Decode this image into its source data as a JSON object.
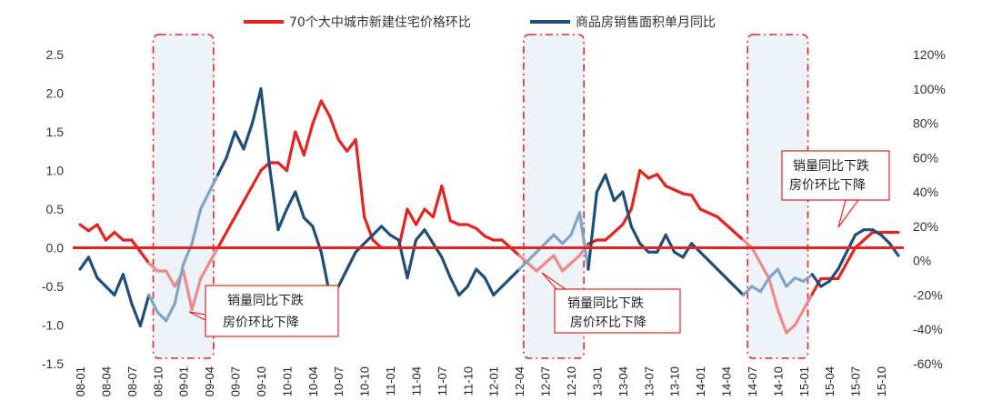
{
  "chart_data": {
    "type": "line",
    "title": "",
    "legend": {
      "placement": "top-center",
      "entries": [
        {
          "name": "70个大中城市新建住宅价格环比",
          "color": "#e52421"
        },
        {
          "name": "商品房销售面积单月同比",
          "color": "#1f4e79"
        }
      ]
    },
    "left_axis": {
      "ylim": [
        -1.5,
        2.5
      ],
      "ticks": [
        "2.5",
        "2.0",
        "1.5",
        "1.0",
        "0.5",
        "0.0",
        "-0.5",
        "-1.0",
        "-1.5"
      ]
    },
    "right_axis": {
      "ylim": [
        -60,
        120
      ],
      "ticks": [
        "120%",
        "100%",
        "80%",
        "60%",
        "40%",
        "20%",
        "0%",
        "-20%",
        "-40%",
        "-60%"
      ]
    },
    "x_range": [
      0,
      95
    ],
    "x_tick_labels": [
      "08-01",
      "08-04",
      "08-07",
      "08-10",
      "09-01",
      "09-04",
      "09-07",
      "09-10",
      "10-01",
      "10-04",
      "10-07",
      "10-10",
      "11-01",
      "11-04",
      "11-07",
      "11-10",
      "12-01",
      "12-04",
      "12-07",
      "12-10",
      "13-01",
      "13-04",
      "13-07",
      "13-10",
      "14-01",
      "14-04",
      "14-07",
      "14-10",
      "15-01",
      "15-04",
      "15-07",
      "15-10"
    ],
    "series": [
      {
        "name": "70个大中城市新建住宅价格环比",
        "axis": "left",
        "color": "#e52421",
        "light_color": "#f08a8a",
        "points": [
          [
            0,
            0.3
          ],
          [
            1,
            0.22
          ],
          [
            2,
            0.3
          ],
          [
            3,
            0.1
          ],
          [
            4,
            0.2
          ],
          [
            5,
            0.1
          ],
          [
            6,
            0.1
          ],
          [
            7,
            -0.05
          ],
          [
            8,
            -0.2
          ],
          [
            9,
            -0.3
          ],
          [
            10,
            -0.3
          ],
          [
            11,
            -0.5
          ],
          [
            12,
            -0.3
          ],
          [
            13,
            -0.8
          ],
          [
            14,
            -0.4
          ],
          [
            15,
            -0.2
          ],
          [
            16,
            0.0
          ],
          [
            17,
            0.2
          ],
          [
            18,
            0.4
          ],
          [
            19,
            0.6
          ],
          [
            20,
            0.8
          ],
          [
            21,
            1.0
          ],
          [
            22,
            1.1
          ],
          [
            23,
            1.1
          ],
          [
            24,
            1.0
          ],
          [
            25,
            1.5
          ],
          [
            26,
            1.2
          ],
          [
            27,
            1.6
          ],
          [
            28,
            1.9
          ],
          [
            29,
            1.7
          ],
          [
            30,
            1.4
          ],
          [
            31,
            1.25
          ],
          [
            32,
            1.4
          ],
          [
            33,
            0.4
          ],
          [
            34,
            0.1
          ],
          [
            35,
            0.0
          ],
          [
            36,
            0.0
          ],
          [
            37,
            0.0
          ],
          [
            38,
            0.5
          ],
          [
            39,
            0.3
          ],
          [
            40,
            0.5
          ],
          [
            41,
            0.4
          ],
          [
            42,
            0.8
          ],
          [
            43,
            0.35
          ],
          [
            44,
            0.3
          ],
          [
            45,
            0.3
          ],
          [
            46,
            0.25
          ],
          [
            47,
            0.15
          ],
          [
            48,
            0.1
          ],
          [
            49,
            0.1
          ],
          [
            50,
            0.0
          ],
          [
            51,
            -0.1
          ],
          [
            52,
            -0.2
          ],
          [
            53,
            -0.3
          ],
          [
            54,
            -0.2
          ],
          [
            55,
            -0.1
          ],
          [
            56,
            -0.3
          ],
          [
            57,
            -0.2
          ],
          [
            58,
            -0.1
          ],
          [
            59,
            0.05
          ],
          [
            60,
            0.1
          ],
          [
            61,
            0.1
          ],
          [
            62,
            0.2
          ],
          [
            63,
            0.3
          ],
          [
            64,
            0.5
          ],
          [
            65,
            1.0
          ],
          [
            66,
            0.9
          ],
          [
            67,
            0.95
          ],
          [
            68,
            0.8
          ],
          [
            69,
            0.75
          ],
          [
            70,
            0.7
          ],
          [
            71,
            0.68
          ],
          [
            72,
            0.5
          ],
          [
            73,
            0.45
          ],
          [
            74,
            0.4
          ],
          [
            75,
            0.3
          ],
          [
            76,
            0.2
          ],
          [
            77,
            0.1
          ],
          [
            78,
            0.0
          ],
          [
            79,
            -0.2
          ],
          [
            80,
            -0.4
          ],
          [
            81,
            -0.8
          ],
          [
            82,
            -1.1
          ],
          [
            83,
            -1.0
          ],
          [
            84,
            -0.8
          ],
          [
            85,
            -0.6
          ],
          [
            86,
            -0.4
          ],
          [
            87,
            -0.4
          ],
          [
            88,
            -0.4
          ],
          [
            89,
            -0.2
          ],
          [
            90,
            0.0
          ],
          [
            91,
            0.1
          ],
          [
            92,
            0.2
          ],
          [
            93,
            0.2
          ],
          [
            94,
            0.2
          ],
          [
            95,
            0.2
          ]
        ]
      },
      {
        "name": "商品房销售面积单月同比",
        "axis": "right",
        "color": "#1f4e79",
        "light_color": "#7fa6c9",
        "points": [
          [
            0,
            -5
          ],
          [
            1,
            2
          ],
          [
            2,
            -10
          ],
          [
            3,
            -15
          ],
          [
            4,
            -20
          ],
          [
            5,
            -8
          ],
          [
            6,
            -25
          ],
          [
            7,
            -38
          ],
          [
            8,
            -20
          ],
          [
            9,
            -30
          ],
          [
            10,
            -35
          ],
          [
            11,
            -25
          ],
          [
            12,
            -2
          ],
          [
            13,
            10
          ],
          [
            14,
            30
          ],
          [
            15,
            40
          ],
          [
            16,
            50
          ],
          [
            17,
            60
          ],
          [
            18,
            75
          ],
          [
            19,
            65
          ],
          [
            20,
            80
          ],
          [
            21,
            100
          ],
          [
            22,
            55
          ],
          [
            23,
            18
          ],
          [
            24,
            30
          ],
          [
            25,
            40
          ],
          [
            26,
            25
          ],
          [
            27,
            20
          ],
          [
            28,
            5
          ],
          [
            29,
            -20
          ],
          [
            30,
            -15
          ],
          [
            31,
            -5
          ],
          [
            32,
            5
          ],
          [
            33,
            10
          ],
          [
            34,
            15
          ],
          [
            35,
            20
          ],
          [
            36,
            15
          ],
          [
            37,
            12
          ],
          [
            38,
            -10
          ],
          [
            39,
            12
          ],
          [
            40,
            18
          ],
          [
            41,
            10
          ],
          [
            42,
            2
          ],
          [
            43,
            -10
          ],
          [
            44,
            -20
          ],
          [
            45,
            -15
          ],
          [
            46,
            -5
          ],
          [
            47,
            -10
          ],
          [
            48,
            -20
          ],
          [
            49,
            -15
          ],
          [
            50,
            -10
          ],
          [
            51,
            -5
          ],
          [
            52,
            0
          ],
          [
            53,
            5
          ],
          [
            54,
            10
          ],
          [
            55,
            15
          ],
          [
            56,
            10
          ],
          [
            57,
            15
          ],
          [
            58,
            28
          ],
          [
            59,
            -5
          ],
          [
            60,
            40
          ],
          [
            61,
            50
          ],
          [
            62,
            35
          ],
          [
            63,
            40
          ],
          [
            64,
            20
          ],
          [
            65,
            10
          ],
          [
            66,
            5
          ],
          [
            67,
            5
          ],
          [
            68,
            15
          ],
          [
            69,
            5
          ],
          [
            70,
            2
          ],
          [
            71,
            10
          ],
          [
            72,
            5
          ],
          [
            73,
            0
          ],
          [
            74,
            -5
          ],
          [
            75,
            -10
          ],
          [
            76,
            -15
          ],
          [
            77,
            -20
          ],
          [
            78,
            -15
          ],
          [
            79,
            -18
          ],
          [
            80,
            -10
          ],
          [
            81,
            -5
          ],
          [
            82,
            -15
          ],
          [
            83,
            -10
          ],
          [
            84,
            -12
          ],
          [
            85,
            -8
          ],
          [
            86,
            -15
          ],
          [
            87,
            -12
          ],
          [
            88,
            -5
          ],
          [
            89,
            5
          ],
          [
            90,
            15
          ],
          [
            91,
            18
          ],
          [
            92,
            18
          ],
          [
            93,
            15
          ],
          [
            94,
            10
          ],
          [
            95,
            3
          ]
        ]
      }
    ],
    "shaded_regions": [
      [
        8.5,
        15.5
      ],
      [
        51.5,
        58.5
      ],
      [
        77.5,
        84.5
      ]
    ],
    "annotations": [
      {
        "line1": "销量同比下跌",
        "line2": "房价环比下降",
        "target_region": 0
      },
      {
        "line1": "销量同比下跌",
        "line2": "房价环比下降",
        "target_region": 1
      },
      {
        "line1": "销量同比下跌",
        "line2": "房价环比下降",
        "target_region": 2
      }
    ]
  }
}
